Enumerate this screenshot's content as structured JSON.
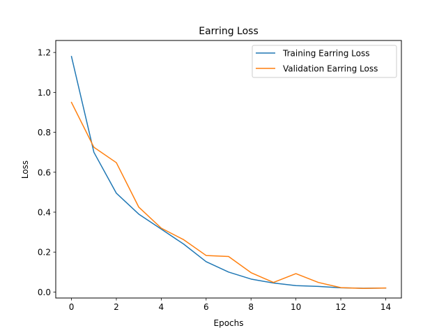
{
  "chart_data": {
    "type": "line",
    "title": "Earring Loss",
    "xlabel": "Epochs",
    "ylabel": "Loss",
    "xlim": [
      -0.7,
      14.7
    ],
    "ylim": [
      -0.03,
      1.26
    ],
    "xticks": [
      0,
      2,
      4,
      6,
      8,
      10,
      12,
      14
    ],
    "yticks": [
      0.0,
      0.2,
      0.4,
      0.6,
      0.8,
      1.0,
      1.2
    ],
    "grid": false,
    "legend_position": "top-right",
    "x": [
      0,
      1,
      2,
      3,
      4,
      5,
      6,
      7,
      8,
      9,
      10,
      11,
      12,
      13,
      14
    ],
    "series": [
      {
        "name": "Training Earring Loss",
        "color": "#1f77b4",
        "values": [
          1.18,
          0.7,
          0.495,
          0.39,
          0.315,
          0.24,
          0.152,
          0.1,
          0.065,
          0.045,
          0.032,
          0.028,
          0.021,
          0.019,
          0.02
        ]
      },
      {
        "name": "Validation Earring Loss",
        "color": "#ff7f0e",
        "values": [
          0.95,
          0.725,
          0.648,
          0.425,
          0.32,
          0.262,
          0.183,
          0.178,
          0.097,
          0.048,
          0.092,
          0.048,
          0.022,
          0.018,
          0.02
        ]
      }
    ]
  }
}
